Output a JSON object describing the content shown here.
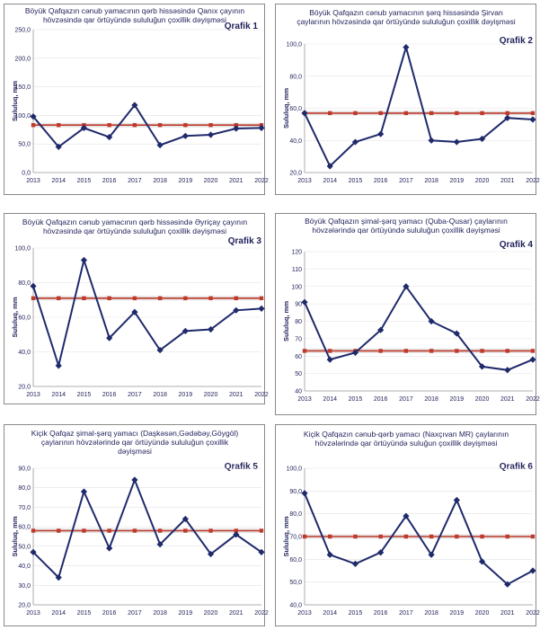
{
  "chart_data": [
    {
      "type": "line",
      "label": "Qrafik 1",
      "title": [
        "Böyük Qafqazın cənub yamacının qərb hissəsində Qanıx çayının",
        "hövzəsində qar örtüyündə sululuğun çoxillik dəyişməsi"
      ],
      "ylabel": "Sululuq, mm",
      "ylim": [
        0,
        250
      ],
      "yticks": [
        "0,0",
        "50,0",
        "100,0",
        "150,0",
        "200,0",
        "250,0"
      ],
      "categories": [
        "2013",
        "2014",
        "2015",
        "2016",
        "2017",
        "2018",
        "2019",
        "2020",
        "2021",
        "2022"
      ],
      "series": [
        {
          "values": [
            98,
            45,
            78,
            62,
            118,
            48,
            64,
            66,
            77,
            78
          ],
          "color": "#1f2a6b"
        },
        {
          "values": [
            83,
            83,
            83,
            83,
            83,
            83,
            83,
            83,
            83,
            83
          ],
          "color": "#c0392b"
        }
      ]
    },
    {
      "type": "line",
      "label": "Qrafik 2",
      "title": [
        "Böyük Qafqazın cənub yamacının şərq hissəsində Şirvan",
        "çaylarının hövzəsində qar örtüyündə sululuğun çoxillik dəyişməsi"
      ],
      "ylabel": "Sululuq, mm",
      "ylim": [
        20,
        100
      ],
      "yticks": [
        "20,0",
        "40,0",
        "60,0",
        "80,0",
        "100,0"
      ],
      "categories": [
        "2013",
        "2014",
        "2015",
        "2016",
        "2017",
        "2018",
        "2019",
        "2020",
        "2021",
        "2022"
      ],
      "series": [
        {
          "values": [
            57,
            24,
            39,
            44,
            98,
            40,
            39,
            41,
            54,
            53
          ],
          "color": "#1f2a6b"
        },
        {
          "values": [
            57,
            57,
            57,
            57,
            57,
            57,
            57,
            57,
            57,
            57
          ],
          "color": "#c0392b"
        }
      ]
    },
    {
      "type": "line",
      "label": "Qrafik 3",
      "title": [
        "Böyük Qafqazın cənub yamacının qərb hissəsində Əyriçay çayının",
        "hövzəsində qar örtüyündə sululuğun çoxillik dəyişməsi"
      ],
      "ylabel": "Sululuq, mm",
      "ylim": [
        20,
        100
      ],
      "yticks": [
        "20,0",
        "40,0",
        "60,0",
        "80,0",
        "100,0"
      ],
      "categories": [
        "2013",
        "2014",
        "2015",
        "2016",
        "2017",
        "2018",
        "2019",
        "2020",
        "2021",
        "2022"
      ],
      "series": [
        {
          "values": [
            78,
            32,
            93,
            48,
            63,
            41,
            52,
            53,
            64,
            65
          ],
          "color": "#1f2a6b"
        },
        {
          "values": [
            71,
            71,
            71,
            71,
            71,
            71,
            71,
            71,
            71,
            71
          ],
          "color": "#c0392b"
        }
      ]
    },
    {
      "type": "line",
      "label": "Qrafik 4",
      "title": [
        "Böyük Qafqazın şimal-şərq yamacı (Quba-Qusar) çaylarının",
        "hövzələrində qar örtüyündə sululuğun  çoxillik dəyişməsi"
      ],
      "ylabel": "Sululuq, mm",
      "ylim": [
        40,
        120
      ],
      "yticks": [
        "40",
        "50",
        "60",
        "70",
        "80",
        "90",
        "100",
        "110",
        "120"
      ],
      "categories": [
        "2013",
        "2014",
        "2015",
        "2016",
        "2017",
        "2018",
        "2019",
        "2020",
        "2021",
        "2022"
      ],
      "series": [
        {
          "values": [
            91,
            58,
            62,
            75,
            100,
            80,
            73,
            54,
            52,
            58
          ],
          "color": "#1f2a6b"
        },
        {
          "values": [
            63,
            63,
            63,
            63,
            63,
            63,
            63,
            63,
            63,
            63
          ],
          "color": "#c0392b"
        }
      ]
    },
    {
      "type": "line",
      "label": "Qrafik 5",
      "title": [
        "Kiçik Qafqaz  şimal-şərq yamacı (Daşkəsən,Gədəbəy,Göygöl)",
        "çaylarının hövzələrində qar örtüyündə sululuğun çoxillik",
        "dəyişməsi"
      ],
      "ylabel": "Sululuq, mm",
      "ylim": [
        20,
        90
      ],
      "yticks": [
        "20,0",
        "30,0",
        "40,0",
        "50,0",
        "60,0",
        "70,0",
        "80,0",
        "90,0"
      ],
      "categories": [
        "2013",
        "2014",
        "2015",
        "2016",
        "2017",
        "2018",
        "2019",
        "2020",
        "2021",
        "2022"
      ],
      "series": [
        {
          "values": [
            47,
            34,
            78,
            49,
            84,
            51,
            64,
            46,
            56,
            47
          ],
          "color": "#1f2a6b"
        },
        {
          "values": [
            58,
            58,
            58,
            58,
            58,
            58,
            58,
            58,
            58,
            58
          ],
          "color": "#c0392b"
        }
      ]
    },
    {
      "type": "line",
      "label": "Qrafik 6",
      "title": [
        "Kiçik Qafqazın cənub-qərb yamacı (Naxçıvan MR) çaylarının",
        "hövzələrində qar örtüyündə suluğun  çoxillik dəyişməsi"
      ],
      "ylabel": "Sululuq, mm",
      "ylim": [
        40,
        100
      ],
      "yticks": [
        "40,0",
        "50,0",
        "60,0",
        "70,0",
        "80,0",
        "90,0",
        "100,0"
      ],
      "categories": [
        "2013",
        "2014",
        "2015",
        "2016",
        "2017",
        "2018",
        "2019",
        "2020",
        "2021",
        "2022"
      ],
      "series": [
        {
          "values": [
            89,
            62,
            58,
            63,
            79,
            62,
            86,
            59,
            49,
            55
          ],
          "color": "#1f2a6b"
        },
        {
          "values": [
            70,
            70,
            70,
            70,
            70,
            70,
            70,
            70,
            70,
            70
          ],
          "color": "#c0392b"
        }
      ]
    }
  ]
}
